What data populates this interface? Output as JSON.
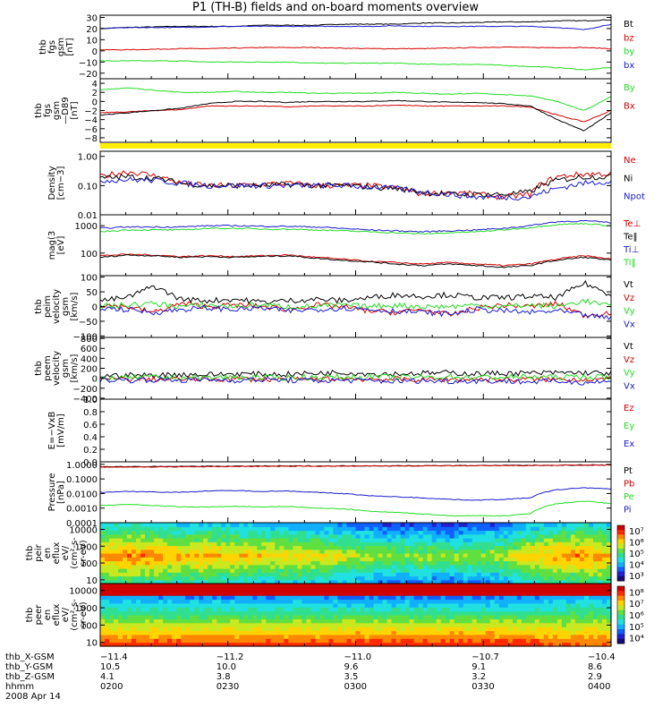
{
  "title": "P1 (TH-B) fields and on-board moments overview",
  "colors": {
    "black": "#000000",
    "red": "#d40000",
    "green": "#22dd22",
    "blue": "#1a1acc",
    "yellow": "#ffee00"
  },
  "chart_data": [
    {
      "type": "line",
      "panel": "fgs",
      "ylabel": [
        "thb",
        "fgs",
        "gsm",
        "[nT]"
      ],
      "ylim": [
        -25,
        32
      ],
      "ticks": [
        {
          "v": 30,
          "t": "30"
        },
        {
          "v": 20,
          "t": "20"
        },
        {
          "v": 10,
          "t": "10"
        },
        {
          "v": 0,
          "t": "0"
        },
        {
          "v": -10,
          "t": "−10"
        },
        {
          "v": -20,
          "t": "−20"
        }
      ],
      "series": [
        {
          "name": "Bt",
          "color": "black",
          "values": [
            20,
            21,
            21.5,
            22,
            22,
            22,
            23,
            23,
            23,
            24,
            24,
            24,
            25,
            25,
            25.5,
            26,
            26,
            27,
            27,
            28
          ]
        },
        {
          "name": "bz",
          "color": "red",
          "values": [
            1,
            1,
            1.5,
            2,
            2,
            2.5,
            3,
            3,
            3,
            2.5,
            2,
            2,
            2,
            2.5,
            3,
            3.5,
            3,
            3,
            3,
            2
          ]
        },
        {
          "name": "by",
          "color": "green",
          "values": [
            -9,
            -9,
            -9,
            -9,
            -10,
            -10,
            -10,
            -10,
            -11,
            -11,
            -11,
            -11,
            -12,
            -12,
            -12,
            -13,
            -14,
            -15,
            -17,
            -15
          ]
        },
        {
          "name": "bx",
          "color": "blue",
          "values": [
            20,
            21,
            21,
            21,
            21.5,
            22,
            22,
            22,
            22,
            22,
            22,
            22.5,
            22,
            22,
            22,
            22,
            22,
            21,
            19,
            24
          ]
        }
      ]
    },
    {
      "type": "line",
      "panel": "fgs_fac",
      "ylabel": [
        "thb",
        "fgs",
        "gsm",
        "—D89",
        "[nT]"
      ],
      "ylim": [
        -9,
        5
      ],
      "ticks": [
        {
          "v": 4,
          "t": "4"
        },
        {
          "v": 2,
          "t": "2"
        },
        {
          "v": 0,
          "t": "0"
        },
        {
          "v": -2,
          "t": "−2"
        },
        {
          "v": -4,
          "t": "−4"
        },
        {
          "v": -6,
          "t": "−6"
        },
        {
          "v": -8,
          "t": "−8"
        }
      ],
      "series": [
        {
          "name": "By",
          "color": "green",
          "values": [
            2.5,
            3,
            2.5,
            2,
            2,
            2.2,
            2,
            2,
            1.8,
            1.8,
            1.8,
            2,
            1.8,
            1.6,
            1.8,
            1.5,
            1.2,
            0,
            -2,
            1
          ]
        },
        {
          "name": "Bx",
          "color": "red",
          "values": [
            -2.5,
            -2.3,
            -2,
            -1.8,
            -1,
            -1,
            -1,
            -1.2,
            -1,
            -1,
            -1,
            -0.8,
            -1,
            -1,
            -1,
            -1,
            -1.2,
            -3,
            -4.5,
            -2
          ]
        },
        {
          "name": "",
          "color": "black",
          "values": [
            -3,
            -2.5,
            -2,
            -1.5,
            -0.5,
            0,
            0,
            -0.2,
            0,
            0,
            0,
            0.2,
            0,
            -0.2,
            -0.2,
            -0.5,
            -1,
            -4,
            -6.5,
            -2.5
          ]
        }
      ]
    },
    {
      "type": "line",
      "panel": "density",
      "log": true,
      "ylabel": [
        "Density",
        "[cm−3]"
      ],
      "ylim": [
        0.01,
        1.5
      ],
      "ticks": [
        {
          "v": 1,
          "t": "1.00"
        },
        {
          "v": 0.1,
          "t": "0.10"
        },
        {
          "v": 0.01,
          "t": "0.01"
        }
      ],
      "series": [
        {
          "name": "Ne",
          "color": "red",
          "values": [
            0.2,
            0.3,
            0.22,
            0.12,
            0.1,
            0.1,
            0.11,
            0.12,
            0.1,
            0.1,
            0.1,
            0.08,
            0.05,
            0.06,
            0.05,
            0.04,
            0.05,
            0.2,
            0.25,
            0.25
          ]
        },
        {
          "name": "Ni",
          "color": "black",
          "values": [
            0.18,
            0.2,
            0.18,
            0.12,
            0.1,
            0.1,
            0.1,
            0.11,
            0.1,
            0.1,
            0.09,
            0.08,
            0.06,
            0.05,
            0.05,
            0.05,
            0.06,
            0.15,
            0.2,
            0.2
          ]
        },
        {
          "name": "Npot",
          "color": "blue",
          "values": [
            0.15,
            0.16,
            0.15,
            0.12,
            0.1,
            0.1,
            0.1,
            0.1,
            0.1,
            0.1,
            0.09,
            0.08,
            0.06,
            0.05,
            0.04,
            0.04,
            0.04,
            0.08,
            0.12,
            0.14
          ]
        }
      ]
    },
    {
      "type": "line",
      "panel": "temp",
      "log": true,
      "ylabel": [
        "mag(3",
        "[eV]"
      ],
      "ylim": [
        15,
        2500
      ],
      "ticks": [
        {
          "v": 1000,
          "t": "1000"
        },
        {
          "v": 100,
          "t": "100"
        }
      ],
      "series": [
        {
          "name": "Te⊥",
          "color": "red",
          "values": [
            80,
            90,
            85,
            75,
            80,
            75,
            80,
            85,
            70,
            60,
            50,
            45,
            40,
            45,
            40,
            35,
            40,
            60,
            80,
            60
          ]
        },
        {
          "name": "Te‖",
          "color": "black",
          "values": [
            70,
            85,
            80,
            70,
            75,
            70,
            75,
            80,
            65,
            55,
            48,
            40,
            35,
            40,
            35,
            30,
            35,
            55,
            70,
            55
          ]
        },
        {
          "name": "Ti⊥",
          "color": "blue",
          "values": [
            800,
            900,
            900,
            900,
            1000,
            1000,
            950,
            950,
            900,
            800,
            700,
            650,
            600,
            650,
            700,
            800,
            1000,
            1400,
            1500,
            1300
          ]
        },
        {
          "name": "Ti‖",
          "color": "green",
          "values": [
            600,
            700,
            700,
            700,
            800,
            800,
            750,
            750,
            700,
            650,
            600,
            550,
            500,
            550,
            600,
            700,
            850,
            1100,
            1200,
            1000
          ]
        }
      ]
    },
    {
      "type": "line",
      "panel": "vel_fac",
      "ylabel": [
        "thb",
        "peim",
        "velocity",
        "gsm",
        "[km/s]"
      ],
      "ylim": [
        -105,
        105
      ],
      "ticks": [
        {
          "v": 100,
          "t": "100"
        },
        {
          "v": 50,
          "t": "50"
        },
        {
          "v": 0,
          "t": "0"
        },
        {
          "v": -50,
          "t": "−50"
        },
        {
          "v": -100,
          "t": "−100"
        }
      ],
      "series": [
        {
          "name": "Vt",
          "color": "black",
          "values": [
            20,
            30,
            70,
            25,
            20,
            25,
            15,
            20,
            25,
            20,
            30,
            40,
            35,
            40,
            30,
            30,
            35,
            30,
            80,
            40
          ]
        },
        {
          "name": "Vz",
          "color": "red",
          "values": [
            5,
            0,
            -20,
            10,
            0,
            5,
            0,
            -10,
            5,
            0,
            -15,
            -20,
            -10,
            -30,
            -5,
            5,
            0,
            10,
            -30,
            -20
          ]
        },
        {
          "name": "Vy",
          "color": "green",
          "values": [
            0,
            5,
            10,
            0,
            5,
            0,
            5,
            0,
            0,
            5,
            0,
            5,
            0,
            0,
            5,
            0,
            5,
            0,
            20,
            0
          ]
        },
        {
          "name": "Vx",
          "color": "blue",
          "values": [
            -5,
            -10,
            -20,
            -10,
            -5,
            -10,
            -5,
            -15,
            -10,
            -5,
            -10,
            -15,
            -20,
            -25,
            -10,
            -15,
            -20,
            -15,
            -30,
            -40
          ]
        }
      ]
    },
    {
      "type": "line",
      "panel": "vel_gsm",
      "ylabel": [
        "thb",
        "peem",
        "velocity",
        "gsm",
        "[km/s]"
      ],
      "ylim": [
        -420,
        820
      ],
      "ticks": [
        {
          "v": 800,
          "t": "800"
        },
        {
          "v": 600,
          "t": "600"
        },
        {
          "v": 400,
          "t": "400"
        },
        {
          "v": 200,
          "t": "200"
        },
        {
          "v": 0,
          "t": "0"
        },
        {
          "v": -200,
          "t": "−200"
        },
        {
          "v": -400,
          "t": "−400"
        }
      ],
      "series": [
        {
          "name": "Vt",
          "color": "black",
          "values": [
            50,
            60,
            60,
            80,
            70,
            90,
            80,
            80,
            100,
            120,
            90,
            90,
            100,
            110,
            90,
            100,
            100,
            110,
            110,
            100
          ]
        },
        {
          "name": "Vz",
          "color": "red",
          "values": [
            -20,
            -10,
            -20,
            -20,
            -20,
            -10,
            -20,
            -30,
            -20,
            -10,
            -20,
            -20,
            -30,
            -20,
            -20,
            -30,
            -20,
            -20,
            -20,
            -20
          ]
        },
        {
          "name": "Vy",
          "color": "green",
          "values": [
            0,
            10,
            20,
            10,
            10,
            20,
            10,
            10,
            20,
            20,
            30,
            20,
            20,
            30,
            20,
            20,
            30,
            20,
            30,
            20
          ]
        },
        {
          "name": "Vx",
          "color": "blue",
          "values": [
            -30,
            -40,
            -30,
            -40,
            -30,
            -40,
            -30,
            -40,
            -50,
            -40,
            -50,
            -60,
            -50,
            -60,
            -50,
            -60,
            -70,
            -60,
            -80,
            -70
          ]
        }
      ]
    },
    {
      "type": "line",
      "panel": "efield",
      "ylabel": [
        "E=−VxB",
        "[mV/m]"
      ],
      "ylim": [
        0,
        1
      ],
      "ticks": [
        {
          "v": 1,
          "t": "1.0"
        },
        {
          "v": 0.8,
          "t": "0.8"
        },
        {
          "v": 0.6,
          "t": "0.6"
        },
        {
          "v": 0.4,
          "t": "0.4"
        },
        {
          "v": 0.2,
          "t": "0.2"
        },
        {
          "v": 0,
          "t": "0.0"
        }
      ],
      "series": [
        {
          "name": "Ez",
          "color": "red",
          "values": []
        },
        {
          "name": "Ey",
          "color": "green",
          "values": []
        },
        {
          "name": "Ex",
          "color": "blue",
          "values": []
        }
      ]
    },
    {
      "type": "line",
      "panel": "pressure",
      "log": true,
      "ylabel": [
        "Pressure",
        "[nPa]"
      ],
      "ylim": [
        0.0001,
        1.5
      ],
      "ticks": [
        {
          "v": 1,
          "t": "1.0000"
        },
        {
          "v": 0.1,
          "t": "0.1000"
        },
        {
          "v": 0.01,
          "t": "0.0100"
        },
        {
          "v": 0.001,
          "t": "0.0010"
        },
        {
          "v": 0.0001,
          "t": "0.0001"
        }
      ],
      "series": [
        {
          "name": "Pt",
          "color": "black",
          "values": [
            0.7,
            0.7,
            0.7,
            0.72,
            0.75,
            0.75,
            0.77,
            0.77,
            0.78,
            0.78,
            0.8,
            0.8,
            0.82,
            0.82,
            0.83,
            0.85,
            0.86,
            0.88,
            0.9,
            0.9
          ]
        },
        {
          "name": "Pb",
          "color": "red",
          "values": [
            0.65,
            0.66,
            0.67,
            0.68,
            0.7,
            0.72,
            0.73,
            0.74,
            0.75,
            0.76,
            0.77,
            0.78,
            0.79,
            0.8,
            0.81,
            0.82,
            0.83,
            0.86,
            0.88,
            0.88
          ]
        },
        {
          "name": "Pe",
          "color": "green",
          "values": [
            0.0015,
            0.0018,
            0.0015,
            0.0012,
            0.0012,
            0.0013,
            0.0012,
            0.0013,
            0.001,
            0.0009,
            0.0006,
            0.0005,
            0.0004,
            0.0003,
            0.0003,
            0.0003,
            0.0004,
            0.002,
            0.003,
            0.002
          ]
        },
        {
          "name": "Pi",
          "color": "blue",
          "values": [
            0.012,
            0.014,
            0.013,
            0.012,
            0.015,
            0.016,
            0.014,
            0.015,
            0.012,
            0.01,
            0.007,
            0.006,
            0.005,
            0.004,
            0.0035,
            0.004,
            0.005,
            0.018,
            0.025,
            0.02
          ]
        }
      ]
    },
    {
      "type": "heatmap",
      "panel": "peir",
      "ylabel": [
        "thb",
        "peir",
        "en",
        "eflux",
        "eV/",
        "(cm²-s-",
        "sr-eV)"
      ],
      "ticks": [
        {
          "v": 10000,
          "t": "10000"
        },
        {
          "v": 1000,
          "t": "1000"
        },
        {
          "v": 100,
          "t": "100"
        },
        {
          "v": 10,
          "t": "10"
        }
      ],
      "colorbar_ticks": [
        "10⁷",
        "10⁶",
        "10⁵",
        "10⁴",
        "10³"
      ],
      "profile": [
        6.2,
        6.6,
        6.3,
        5.9,
        6.0,
        5.8,
        5.6,
        5.5,
        5.3,
        5.0,
        4.6,
        4.2,
        4.4,
        4.0,
        4.4,
        4.6,
        5.6,
        6.2,
        6.4,
        6.0
      ]
    },
    {
      "type": "heatmap",
      "panel": "peer",
      "ylabel": [
        "thb",
        "peer",
        "en",
        "eflux",
        "eV/",
        "(cm²-s-",
        "sr-eV)"
      ],
      "ticks": [
        {
          "v": 10000,
          "t": "10000"
        },
        {
          "v": 1000,
          "t": "1000"
        },
        {
          "v": 100,
          "t": "100"
        },
        {
          "v": 10,
          "t": "10"
        }
      ],
      "colorbar_ticks": [
        "10⁸",
        "10⁷",
        "10⁶",
        "10⁵",
        "10⁴"
      ],
      "profile": [
        1.6,
        1.7,
        1.6,
        1.5,
        1.5,
        1.5,
        1.4,
        1.4,
        1.3,
        1.2,
        1.1,
        1.0,
        1.0,
        0.9,
        0.9,
        1.0,
        1.1,
        2.4,
        2.8,
        2.5
      ]
    }
  ],
  "x_axis": {
    "rows": [
      {
        "label": "thb_X-GSM",
        "values": [
          "−11.4",
          "−11.2",
          "−11.0",
          "−10.7",
          "−10.4"
        ]
      },
      {
        "label": "thb_Y-GSM",
        "values": [
          "10.5",
          "10.0",
          "9.6",
          "9.1",
          "8.6"
        ]
      },
      {
        "label": "thb_Z-GSM",
        "values": [
          "4.1",
          "3.8",
          "3.5",
          "3.2",
          "2.9"
        ]
      },
      {
        "label": "hhmm",
        "values": [
          "0200",
          "0230",
          "0300",
          "0330",
          "0400"
        ]
      }
    ],
    "date": "2008 Apr 14"
  }
}
